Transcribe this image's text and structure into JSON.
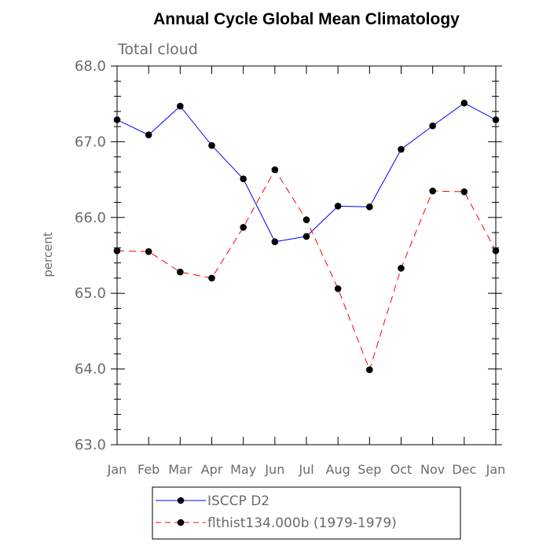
{
  "chart_data": {
    "type": "line",
    "title": "Annual Cycle Global Mean Climatology",
    "subtitle": "Total cloud",
    "xlabel": "",
    "ylabel": "percent",
    "categories": [
      "Jan",
      "Feb",
      "Mar",
      "Apr",
      "May",
      "Jun",
      "Jul",
      "Aug",
      "Sep",
      "Oct",
      "Nov",
      "Dec",
      "Jan"
    ],
    "ylim": [
      63.0,
      68.0
    ],
    "yticks": [
      "63.0",
      "64.0",
      "65.0",
      "66.0",
      "67.0",
      "68.0"
    ],
    "ytick_values": [
      63,
      64,
      65,
      66,
      67,
      68
    ],
    "grid": false,
    "legend_position": "bottom-center",
    "series": [
      {
        "name": "ISCCP D2",
        "color": "#0000ff",
        "dash": "solid",
        "values": [
          67.29,
          67.09,
          67.47,
          66.95,
          66.51,
          65.68,
          65.75,
          66.15,
          66.14,
          66.9,
          67.21,
          67.51,
          67.29
        ]
      },
      {
        "name": "flthist134.000b (1979-1979)",
        "color": "#ff0000",
        "dash": "dashed",
        "values": [
          65.56,
          65.55,
          65.28,
          65.2,
          65.87,
          66.63,
          65.97,
          65.06,
          63.99,
          65.33,
          66.35,
          66.34,
          65.56
        ]
      }
    ]
  }
}
